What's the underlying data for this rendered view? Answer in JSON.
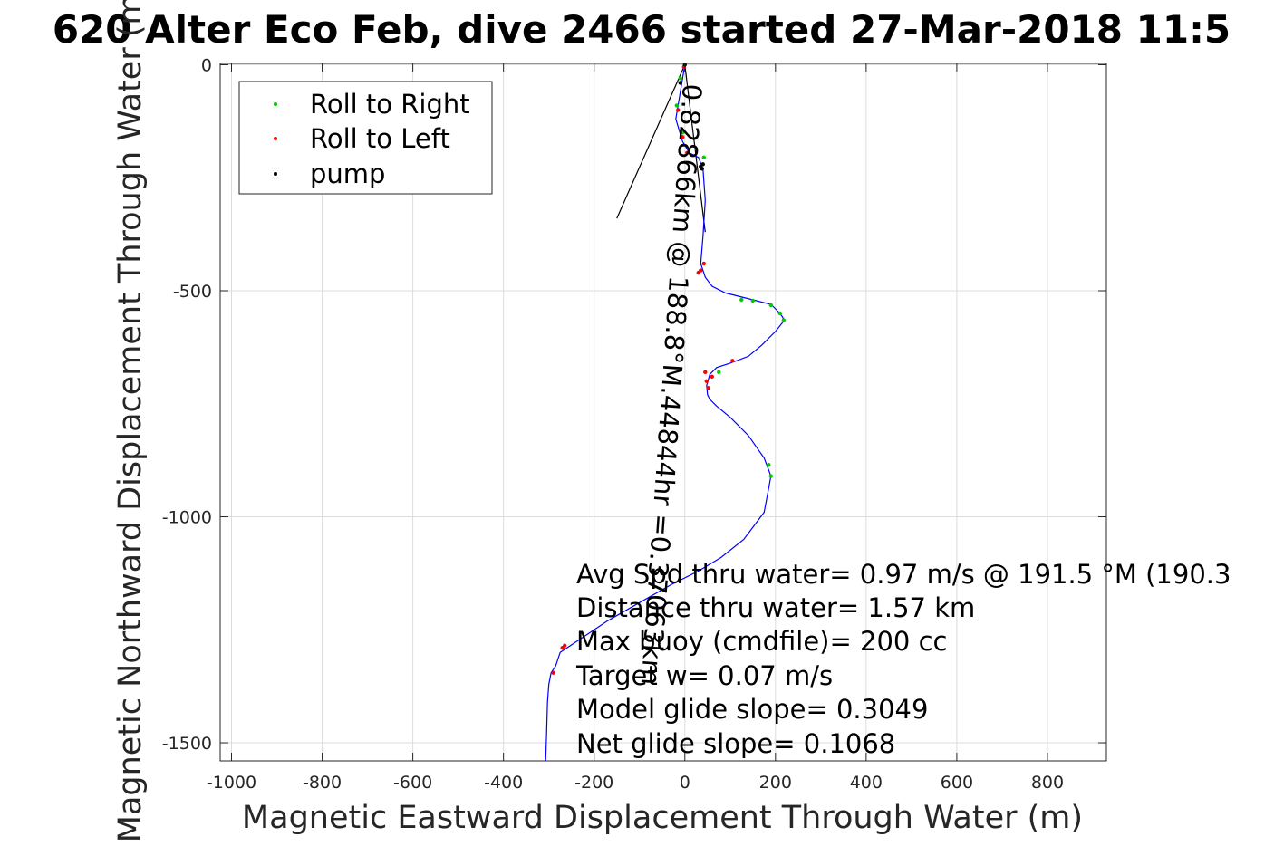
{
  "chart_data": {
    "type": "line",
    "title": "620 Alter Eco Feb, dive 2466 started 27-Mar-2018 11:5",
    "xlabel": "Magnetic Eastward Displacement Through Water (m)",
    "ylabel": "Magnetic Northward Displacement Through Water (m)",
    "xlim": [
      -1025,
      930
    ],
    "ylim": [
      -1540,
      3
    ],
    "xticks": [
      -1000,
      -800,
      -600,
      -400,
      -200,
      0,
      200,
      400,
      600,
      800
    ],
    "yticks": [
      -1500,
      -1000,
      -500,
      0
    ],
    "xtick_labels": [
      "-1000",
      "-800",
      "-600",
      "-400",
      "-200",
      "0",
      "200",
      "400",
      "600",
      "800"
    ],
    "ytick_labels": [
      "-1500",
      "-1000",
      "-500",
      "0"
    ],
    "grid": true,
    "legend": {
      "placement": "top-left",
      "entries": [
        {
          "label": "Roll to Right",
          "color": "#00cc00"
        },
        {
          "label": "Roll to Left",
          "color": "#ff0000"
        },
        {
          "label": "pump",
          "color": "#000000"
        }
      ]
    },
    "track": {
      "name": "track",
      "color": "#0000ff",
      "x": [
        0,
        -10,
        -20,
        -5,
        10,
        30,
        40,
        45,
        40,
        35,
        45,
        60,
        90,
        150,
        190,
        210,
        220,
        200,
        170,
        140,
        100,
        70,
        55,
        48,
        50,
        55,
        70,
        100,
        140,
        175,
        190,
        175,
        130,
        80,
        30,
        -30,
        -100,
        -170,
        -230,
        -260,
        -275,
        -285,
        -295,
        -300,
        -303,
        -305,
        -307
      ],
      "y": [
        0,
        -60,
        -120,
        -170,
        -195,
        -205,
        -230,
        -300,
        -380,
        -440,
        -470,
        -490,
        -505,
        -520,
        -530,
        -550,
        -565,
        -590,
        -620,
        -645,
        -660,
        -670,
        -685,
        -710,
        -730,
        -740,
        -755,
        -780,
        -820,
        -870,
        -910,
        -990,
        -1050,
        -1090,
        -1120,
        -1150,
        -1190,
        -1230,
        -1270,
        -1290,
        -1300,
        -1330,
        -1345,
        -1370,
        -1410,
        -1480,
        -1540
      ]
    },
    "roll_right": {
      "x": [
        -10,
        -18,
        -5,
        42,
        35,
        125,
        150,
        190,
        210,
        218,
        185,
        190,
        75
      ],
      "y": [
        -30,
        -90,
        -150,
        -205,
        -225,
        -520,
        -522,
        -532,
        -550,
        -565,
        -885,
        -910,
        -680
      ]
    },
    "roll_left": {
      "x": [
        -2,
        -15,
        -5,
        5,
        30,
        42,
        35,
        45,
        48,
        52,
        60,
        105,
        -265,
        -270,
        -290
      ],
      "y": [
        -5,
        -100,
        -160,
        -195,
        -460,
        -440,
        -455,
        -680,
        -700,
        -715,
        -690,
        -655,
        -1285,
        -1290,
        -1345
      ]
    },
    "pump": {
      "x": [
        0,
        -10,
        35,
        38,
        40
      ],
      "y": [
        0,
        -40,
        -225,
        -230,
        -220
      ]
    },
    "heading_lines": [
      {
        "x": [
          0,
          45
        ],
        "y": [
          0,
          -370
        ]
      },
      {
        "x": [
          0,
          -150
        ],
        "y": [
          0,
          -340
        ]
      }
    ],
    "rotated_annotation": "0.82866km @ 188.8°M.44844hr =0.37063km",
    "annotations": [
      "Avg Spd thru water=  0.97 m/s @ 191.5 °M (190.3",
      "Distance thru water=  1.57 km",
      "Max buoy (cmdfile)= 200 cc",
      "Target w= 0.07 m/s",
      "Model glide slope= 0.3049",
      "Net glide slope= 0.1068"
    ]
  }
}
